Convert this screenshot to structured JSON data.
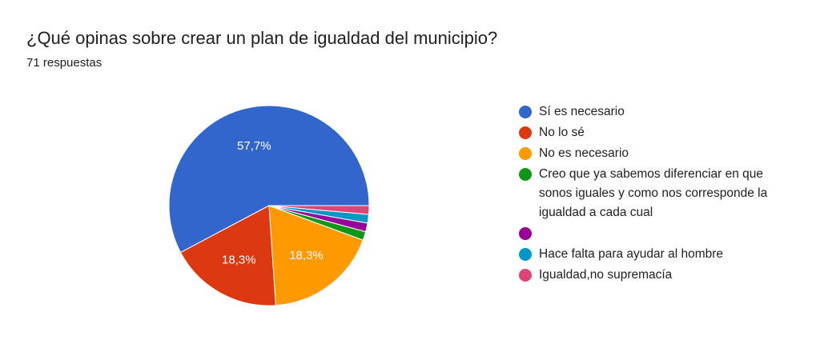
{
  "header": {
    "question": "¿Qué opinas sobre crear un plan de igualdad del municipio?",
    "responses": "71 respuestas"
  },
  "chart_data": {
    "type": "pie",
    "labels": [
      "Sí es necesario",
      "No lo sé",
      "No es necesario",
      "Creo que ya sabemos diferenciar en que sonos iguales y como nos corresponde la igualdad a cada cual",
      "",
      "Hace falta para ayudar al hombre",
      "Igualdad,no supremacía"
    ],
    "values": [
      57.7,
      18.3,
      18.3,
      1.4,
      1.4,
      1.4,
      1.4
    ],
    "value_labels": [
      "57,7%",
      "18,3%",
      "18,3%",
      "",
      "",
      "",
      ""
    ],
    "colors": [
      "#3366cc",
      "#dc3912",
      "#ff9900",
      "#109618",
      "#990099",
      "#0099c6",
      "#dd4477"
    ],
    "start": "3 o'clock, counter-clockwise",
    "legend": "right"
  }
}
